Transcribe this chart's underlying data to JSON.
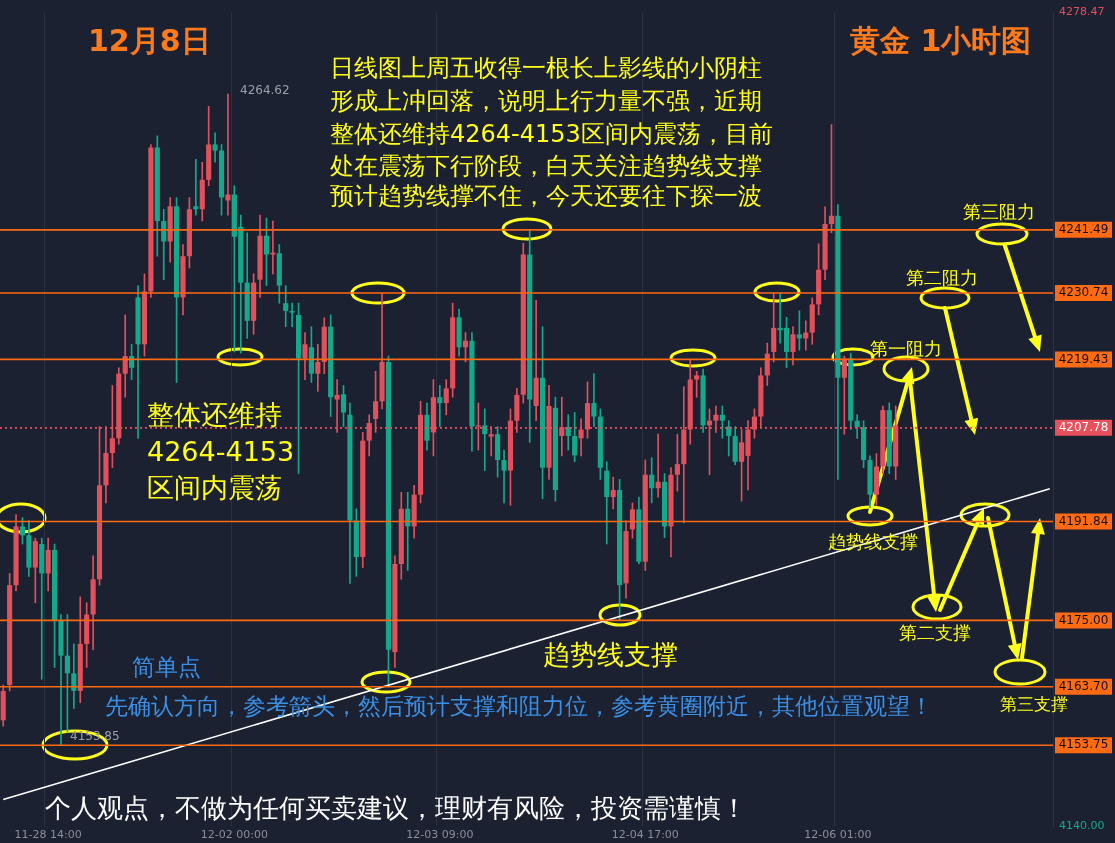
{
  "chart_data": {
    "type": "candlestick",
    "title": "黄金 1小时图",
    "subtitle": "12月8日",
    "categories": [
      null,
      null,
      null,
      null,
      null,
      null,
      null,
      "11-28 14:00",
      null,
      null,
      null,
      null,
      null,
      null,
      null,
      null,
      null,
      null,
      null,
      null,
      null,
      null,
      null,
      null,
      null,
      null,
      null,
      null,
      null,
      null,
      null,
      null,
      null,
      null,
      null,
      null,
      "12-02 00:00",
      null,
      null,
      null,
      null,
      null,
      null,
      null,
      null,
      null,
      null,
      null,
      null,
      null,
      null,
      null,
      null,
      null,
      null,
      null,
      null,
      null,
      null,
      null,
      null,
      null,
      null,
      null,
      null,
      null,
      null,
      null,
      "12-03 09:00",
      null,
      null,
      null,
      null,
      null,
      null,
      null,
      null,
      null,
      null,
      null,
      null,
      null,
      null,
      null,
      null,
      null,
      null,
      null,
      null,
      null,
      null,
      null,
      null,
      null,
      null,
      null,
      null,
      null,
      null,
      null,
      "12-04 17:00",
      null,
      null,
      null,
      null,
      null,
      null,
      null,
      null,
      null,
      null,
      null,
      null,
      null,
      null,
      null,
      null,
      null,
      null,
      null,
      null,
      null,
      null,
      null,
      null,
      null,
      null,
      null,
      null,
      null,
      "12-06 01:00",
      null,
      null,
      null,
      null,
      null,
      null,
      null,
      null,
      null,
      null,
      null,
      null,
      null,
      null,
      null,
      null,
      null,
      null,
      null,
      null,
      null,
      null,
      null,
      null,
      null,
      null,
      null,
      null,
      null,
      null,
      null,
      null,
      null
    ],
    "ohlc": [
      [
        4158,
        4164,
        4157,
        4163
      ],
      [
        4164,
        4183,
        4163,
        4181
      ],
      [
        4181,
        4193,
        4180,
        4191
      ],
      [
        4191,
        4192.5,
        4188,
        4189.5
      ],
      [
        4189.5,
        4192,
        4182.5,
        4184
      ],
      [
        4184,
        4189,
        4178,
        4188.5
      ],
      [
        4188,
        4189,
        4165,
        4183
      ],
      [
        4183,
        4189,
        4180,
        4187
      ],
      [
        4187,
        4188,
        4167,
        4175
      ],
      [
        4175,
        4176,
        4153.85,
        4169
      ],
      [
        4169,
        4176,
        4156,
        4166
      ],
      [
        4166,
        4171,
        4160,
        4163
      ],
      [
        4163,
        4179,
        4161,
        4171
      ],
      [
        4171,
        4178,
        4167,
        4176
      ],
      [
        4176,
        4186,
        4170,
        4182
      ],
      [
        4182,
        4208,
        4181,
        4198
      ],
      [
        4198,
        4208,
        4195,
        4203.5
      ],
      [
        4203.5,
        4215,
        4201,
        4206
      ],
      [
        4206,
        4218,
        4205,
        4217
      ],
      [
        4217,
        4227,
        4213,
        4220
      ],
      [
        4220,
        4222,
        4216,
        4218
      ],
      [
        4230,
        4232,
        4206,
        4222
      ],
      [
        4222,
        4234,
        4220,
        4231
      ],
      [
        4231,
        4256,
        4230,
        4255.5
      ],
      [
        4255.5,
        4257.5,
        4237,
        4243
      ],
      [
        4243,
        4245,
        4233,
        4239.5
      ],
      [
        4239.5,
        4247,
        4236,
        4245.5
      ],
      [
        4245.5,
        4247,
        4215.5,
        4230
      ],
      [
        4230,
        4239,
        4227,
        4237
      ],
      [
        4237,
        4247,
        4235,
        4245
      ],
      [
        4245.5,
        4253.5,
        4244,
        4245
      ],
      [
        4245,
        4253,
        4243,
        4250
      ],
      [
        4250,
        4262.5,
        4249,
        4256
      ],
      [
        4256,
        4258,
        4253,
        4255
      ],
      [
        4255,
        4256,
        4244,
        4247
      ],
      [
        4246.5,
        4264.62,
        4244,
        4247.5
      ],
      [
        4247.5,
        4249,
        4220.7,
        4240.3
      ],
      [
        4242,
        4244,
        4220.5,
        4232.5
      ],
      [
        4232.5,
        4241,
        4223,
        4226
      ],
      [
        4226,
        4234,
        4223.7,
        4232.5
      ],
      [
        4233,
        4244,
        4230,
        4240.5
      ],
      [
        4240.5,
        4243.5,
        4232,
        4237.3
      ],
      [
        4237.3,
        4243,
        4234,
        4237.6
      ],
      [
        4237.5,
        4239,
        4229,
        4232
      ],
      [
        4229,
        4232,
        4225,
        4227.7
      ],
      [
        4227.7,
        4229,
        4225,
        4227.4
      ],
      [
        4227,
        4229,
        4200,
        4219.6
      ],
      [
        4219.6,
        4224,
        4216,
        4222
      ],
      [
        4221.5,
        4225,
        4215.5,
        4217
      ],
      [
        4217,
        4222,
        4214,
        4219
      ],
      [
        4219,
        4226.5,
        4217,
        4225
      ],
      [
        4225,
        4227,
        4209.7,
        4213
      ],
      [
        4212.6,
        4216,
        4207,
        4213.4
      ],
      [
        4213.5,
        4215,
        4208,
        4210.4
      ],
      [
        4210,
        4212,
        4181.3,
        4192
      ],
      [
        4192,
        4194,
        4182.5,
        4185.8
      ],
      [
        4185.8,
        4207,
        4184,
        4205.6
      ],
      [
        4205.6,
        4210,
        4203,
        4208.6
      ],
      [
        4209.3,
        4217.4,
        4207,
        4212.3
      ],
      [
        4212.3,
        4230.7,
        4211,
        4219
      ],
      [
        4219,
        4220,
        4164,
        4170
      ],
      [
        4169.6,
        4186,
        4167,
        4184.6
      ],
      [
        4184.6,
        4196.8,
        4182,
        4194
      ],
      [
        4194,
        4196.8,
        4183.5,
        4191
      ],
      [
        4191,
        4198,
        4189,
        4196.4
      ],
      [
        4196.4,
        4212.3,
        4195,
        4210
      ],
      [
        4210,
        4212,
        4204,
        4205.6
      ],
      [
        4207,
        4216,
        4203,
        4213
      ],
      [
        4213,
        4215,
        4208,
        4212
      ],
      [
        4212,
        4216,
        4210,
        4214.5
      ],
      [
        4214.5,
        4229,
        4213,
        4226.6
      ],
      [
        4226.6,
        4228,
        4220,
        4221.5
      ],
      [
        4221.5,
        4224,
        4219,
        4222.6
      ],
      [
        4222.6,
        4224,
        4203.8,
        4208
      ],
      [
        4208,
        4212,
        4204,
        4208.2
      ],
      [
        4208.2,
        4211,
        4200.5,
        4206.7
      ],
      [
        4206.3,
        4208,
        4203,
        4206.7
      ],
      [
        4206.7,
        4208,
        4199.4,
        4202.3
      ],
      [
        4202.3,
        4204,
        4195,
        4200.5
      ],
      [
        4200.5,
        4211,
        4194.6,
        4209
      ],
      [
        4209,
        4214.5,
        4207,
        4213.4
      ],
      [
        4213.4,
        4239.2,
        4212,
        4237.3
      ],
      [
        4237.3,
        4241.4,
        4205.3,
        4212.6
      ],
      [
        4211.5,
        4229.5,
        4209,
        4216.3
      ],
      [
        4216.3,
        4225,
        4195.7,
        4201
      ],
      [
        4201,
        4215,
        4199,
        4211.5
      ],
      [
        4211.2,
        4213,
        4195.3,
        4197.2
      ],
      [
        4206.4,
        4213,
        4203,
        4207.9
      ],
      [
        4207.9,
        4210,
        4204,
        4206.4
      ],
      [
        4206.4,
        4210.4,
        4202,
        4203.1
      ],
      [
        4206,
        4209.3,
        4203,
        4207.5
      ],
      [
        4207.5,
        4215.6,
        4206,
        4212
      ],
      [
        4212,
        4217,
        4208,
        4209.7
      ],
      [
        4209.7,
        4211,
        4199,
        4201
      ],
      [
        4200.5,
        4202,
        4188,
        4196
      ],
      [
        4196,
        4199.4,
        4194,
        4197.2
      ],
      [
        4197.2,
        4199,
        4175.1,
        4181
      ],
      [
        4181.3,
        4192,
        4178.8,
        4190.2
      ],
      [
        4190.5,
        4195,
        4189,
        4193.9
      ],
      [
        4193.9,
        4196,
        4184.6,
        4185
      ],
      [
        4185,
        4202.3,
        4183.5,
        4199.8
      ],
      [
        4199.8,
        4202.7,
        4195,
        4197.5
      ],
      [
        4197.5,
        4206.7,
        4196,
        4198.6
      ],
      [
        4198.6,
        4200,
        4189.1,
        4191
      ],
      [
        4191,
        4201,
        4185.8,
        4199.8
      ],
      [
        4199.8,
        4206.7,
        4197,
        4201.6
      ],
      [
        4201.6,
        4214.8,
        4191.6,
        4207.5
      ],
      [
        4207.5,
        4219.3,
        4205,
        4216
      ],
      [
        4216,
        4217.4,
        4213,
        4216.7
      ],
      [
        4216.7,
        4217.8,
        4207,
        4208.2
      ],
      [
        4208.2,
        4211,
        4199.8,
        4209
      ],
      [
        4209,
        4211.5,
        4207,
        4210
      ],
      [
        4210,
        4211.5,
        4206,
        4209
      ],
      [
        4208,
        4209,
        4203,
        4206.4
      ],
      [
        4206.4,
        4208,
        4201.5,
        4202
      ],
      [
        4202,
        4207.5,
        4195.3,
        4205.3
      ],
      [
        4203,
        4209,
        4197.2,
        4207.5
      ],
      [
        4207.5,
        4211,
        4206,
        4209.7
      ],
      [
        4209.7,
        4218,
        4208,
        4216.7
      ],
      [
        4216.7,
        4222.2,
        4215,
        4220.4
      ],
      [
        4220.7,
        4230.7,
        4219,
        4224.8
      ],
      [
        4224.8,
        4230.7,
        4222.2,
        4224.4
      ],
      [
        4224.8,
        4226.6,
        4218,
        4220.7
      ],
      [
        4220.7,
        4225,
        4218.5,
        4223.7
      ],
      [
        4223.7,
        4227.7,
        4221,
        4223
      ],
      [
        4223,
        4226,
        4221,
        4224
      ],
      [
        4224,
        4229.9,
        4222,
        4228.8
      ],
      [
        4228.8,
        4239.1,
        4227,
        4234.7
      ],
      [
        4234.7,
        4245.4,
        4233,
        4242.5
      ],
      [
        4242.5,
        4259.4,
        4241,
        4243.9
      ],
      [
        4243.9,
        4245.8,
        4199,
        4216.3
      ],
      [
        4216.3,
        4220,
        4206.7,
        4219.6
      ],
      [
        4219.6,
        4220.5,
        4207.5,
        4209
      ],
      [
        4209,
        4210,
        4206,
        4207.9
      ],
      [
        4207.9,
        4209,
        4201,
        4202.3
      ],
      [
        4202.3,
        4203,
        4194.2,
        4196.4
      ],
      [
        4196.4,
        4203.4,
        4194.6,
        4201.2
      ],
      [
        4201.2,
        4211.5,
        4200,
        4210.8
      ],
      [
        4210.8,
        4212,
        4200,
        4201.2
      ],
      [
        4201.2,
        4211.5,
        4199,
        4208.2
      ],
      null,
      null,
      null,
      null,
      null,
      null,
      null,
      null,
      null,
      null,
      null,
      null,
      null,
      null,
      null,
      null,
      null,
      null,
      null,
      null,
      null,
      null,
      null,
      null
    ],
    "series": [
      {
        "type": "line",
        "color": "#ffffff",
        "values": [
          4144.5,
          null,
          null,
          null,
          null,
          null,
          null,
          null,
          null,
          null,
          null,
          null,
          null,
          null,
          null,
          null,
          null,
          null,
          null,
          null,
          null,
          null,
          null,
          null,
          null,
          null,
          null,
          null,
          null,
          null,
          null,
          null,
          null,
          null,
          null,
          null,
          null,
          null,
          null,
          null,
          null,
          null,
          null,
          null,
          null,
          null,
          null,
          null,
          null,
          null,
          null,
          null,
          null,
          null,
          null,
          null,
          null,
          null,
          null,
          null,
          null,
          null,
          null,
          null,
          null,
          null,
          null,
          null,
          null,
          null,
          null,
          null,
          null,
          null,
          null,
          null,
          null,
          null,
          null,
          null,
          null,
          null,
          null,
          null,
          null,
          null,
          null,
          null,
          null,
          null,
          null,
          null,
          null,
          null,
          null,
          null,
          null,
          null,
          null,
          null,
          null,
          null,
          null,
          null,
          null,
          null,
          null,
          null,
          null,
          null,
          null,
          null,
          null,
          null,
          null,
          null,
          null,
          null,
          null,
          null,
          null,
          null,
          null,
          null,
          null,
          null,
          null,
          null,
          null,
          null,
          null,
          null,
          null,
          null,
          null,
          null,
          null,
          null,
          null,
          null,
          null,
          null,
          null,
          null,
          null,
          null,
          null,
          null,
          null,
          null,
          null,
          null,
          null,
          null,
          null,
          null,
          null,
          null,
          null,
          null,
          null,
          null,
          null,
          4197.4
        ]
      }
    ],
    "ylim": [
      4140,
      4278.47
    ],
    "yticks": [
      {
        "value": 4140,
        "label": "4140.00"
      },
      4278.47
    ],
    "grid": "x",
    "ref_lines": [
      {
        "axis": "y",
        "value": 4241.49,
        "label": "4241.49",
        "color": "#ff6a13"
      },
      {
        "axis": "y",
        "value": 4230.74,
        "label": "4230.74",
        "color": "#ff6a13"
      },
      {
        "axis": "y",
        "value": 4219.43,
        "label": "4219.43",
        "color": "#ff6a13"
      },
      {
        "axis": "y",
        "value": 4207.78,
        "label": "4207.78",
        "color": "#e8505b",
        "line_style": "dotted"
      },
      {
        "axis": "y",
        "value": 4191.84,
        "label": "4191.84",
        "color": "#ff6a13"
      },
      {
        "axis": "y",
        "value": 4175.0,
        "label": "4175.00",
        "color": "#ff6a13"
      },
      {
        "axis": "y",
        "value": 4163.7,
        "label": "4163.70",
        "color": "#ff6a13"
      },
      {
        "axis": "y",
        "value": 4153.75,
        "label": "4153.75",
        "color": "#ff6a13"
      }
    ],
    "annotations": [
      "日线图上周五收得一根长上影线的小阴柱",
      "形成上冲回落，说明上行力量不强，近期",
      "整体还维持4264-4153区间内震荡，目前",
      "处在震荡下行阶段，白天关注趋势线支撑",
      "预计趋势线撑不住，今天还要往下探一波",
      "整体还维持",
      "4264-4153",
      "区间内震荡",
      "趋势线支撑",
      "简单点",
      "先确认方向，参考箭头，然后预计支撑和阻力位，参考黄圈附近，其他位置观望！",
      "个人观点，不做为任何买卖建议，理财有风险，投资需谨慎！",
      {
        "text": "第三阻力",
        "y": 4241.49
      },
      {
        "text": "第二阻力",
        "y": 4230.74
      },
      {
        "text": "第一阻力",
        "y": 4219.43
      },
      "趋势线支撑",
      {
        "text": "第二支撑",
        "y": 4175.0
      },
      {
        "text": "第三支撑",
        "y": 4163.7
      },
      "4264.62",
      "4153.85"
    ]
  }
}
